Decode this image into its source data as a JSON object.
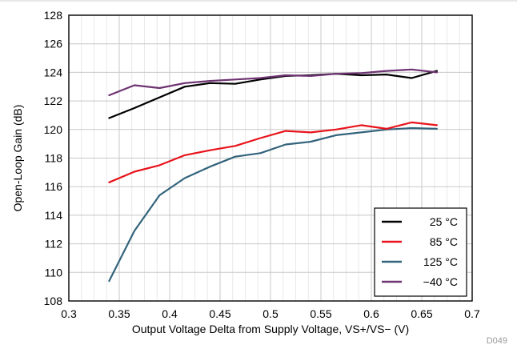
{
  "figure_id": "D049",
  "chart_data": {
    "type": "line",
    "title": "",
    "xlabel": "Output Voltage Delta from Supply Voltage, VS+/VS− (V)",
    "ylabel": "Open-Loop Gain (dB)",
    "xlim": [
      0.3,
      0.7
    ],
    "ylim": [
      108,
      128
    ],
    "xticks": [
      0.3,
      0.35,
      0.4,
      0.45,
      0.5,
      0.55,
      0.6,
      0.65,
      0.7
    ],
    "xtick_labels": [
      "0.3",
      "0.35",
      "0.4",
      "0.45",
      "0.5",
      "0.55",
      "0.6",
      "0.65",
      "0.7"
    ],
    "yticks": [
      108,
      110,
      112,
      114,
      116,
      118,
      120,
      122,
      124,
      126,
      128
    ],
    "ytick_labels": [
      "108",
      "110",
      "112",
      "114",
      "116",
      "118",
      "120",
      "122",
      "124",
      "126",
      "128"
    ],
    "grid": true,
    "legend_position": "bottom-right",
    "x": [
      0.34,
      0.365,
      0.39,
      0.415,
      0.44,
      0.465,
      0.49,
      0.515,
      0.54,
      0.565,
      0.59,
      0.615,
      0.64,
      0.665
    ],
    "series": [
      {
        "name": "25 °C",
        "color": "#000000",
        "values": [
          120.8,
          121.5,
          122.25,
          123.0,
          123.25,
          123.2,
          123.5,
          123.75,
          123.8,
          123.9,
          123.8,
          123.85,
          123.6,
          124.1
        ]
      },
      {
        "name": "85 °C",
        "color": "#e8141b",
        "values": [
          116.3,
          117.05,
          117.5,
          118.2,
          118.55,
          118.85,
          119.4,
          119.9,
          119.8,
          120.0,
          120.3,
          120.05,
          120.5,
          120.3
        ]
      },
      {
        "name": "125 °C",
        "color": "#33647c",
        "values": [
          109.4,
          112.9,
          115.4,
          116.6,
          117.4,
          118.1,
          118.35,
          118.95,
          119.15,
          119.6,
          119.8,
          120.0,
          120.1,
          120.05
        ]
      },
      {
        "name": "−40 °C",
        "color": "#6e3372",
        "values": [
          122.4,
          123.1,
          122.9,
          123.25,
          123.4,
          123.5,
          123.6,
          123.8,
          123.75,
          123.9,
          123.95,
          124.1,
          124.2,
          124.0
        ]
      }
    ]
  }
}
